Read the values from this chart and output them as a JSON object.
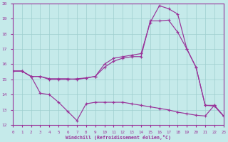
{
  "xlabel": "Windchill (Refroidissement éolien,°C)",
  "xlim": [
    0,
    23
  ],
  "ylim": [
    12,
    20
  ],
  "yticks": [
    12,
    13,
    14,
    15,
    16,
    17,
    18,
    19,
    20
  ],
  "xticks": [
    0,
    1,
    2,
    3,
    4,
    5,
    6,
    7,
    8,
    9,
    10,
    11,
    12,
    13,
    14,
    15,
    16,
    17,
    18,
    19,
    20,
    21,
    22,
    23
  ],
  "background_color": "#c5eaea",
  "line_color": "#993399",
  "grid_color": "#9ecece",
  "line1_x": [
    0,
    1,
    2,
    3,
    4,
    5,
    6,
    7,
    8,
    9,
    10,
    11,
    12,
    13,
    14,
    15,
    16,
    17,
    18,
    19,
    20,
    21,
    22,
    23
  ],
  "line1_y": [
    15.55,
    15.55,
    15.2,
    15.2,
    15.05,
    15.05,
    15.05,
    15.0,
    15.1,
    15.2,
    16.0,
    16.4,
    16.5,
    16.6,
    16.7,
    18.75,
    19.85,
    19.65,
    19.3,
    17.0,
    15.8,
    13.3,
    13.25,
    12.6
  ],
  "line2_x": [
    0,
    1,
    2,
    3,
    4,
    5,
    6,
    7,
    8,
    9,
    10,
    11,
    12,
    13,
    14,
    15,
    16,
    17,
    18,
    19,
    20,
    21,
    22,
    23
  ],
  "line2_y": [
    15.55,
    15.55,
    15.2,
    15.2,
    15.0,
    15.0,
    15.0,
    15.05,
    15.1,
    15.2,
    15.8,
    16.2,
    16.4,
    16.5,
    16.5,
    18.85,
    18.85,
    18.9,
    18.1,
    17.0,
    15.8,
    13.3,
    13.3,
    12.6
  ],
  "line3_x": [
    0,
    1,
    2,
    3,
    4,
    5,
    6,
    7,
    8,
    9,
    10,
    11,
    12,
    13,
    14,
    15,
    16,
    17,
    18,
    19,
    20,
    21,
    22,
    23
  ],
  "line3_y": [
    15.55,
    15.55,
    15.2,
    14.1,
    14.0,
    13.5,
    12.9,
    12.3,
    13.4,
    13.5,
    13.5,
    13.5,
    13.5,
    13.4,
    13.3,
    13.2,
    13.1,
    13.0,
    12.85,
    12.75,
    12.65,
    12.6,
    13.3,
    12.6
  ]
}
